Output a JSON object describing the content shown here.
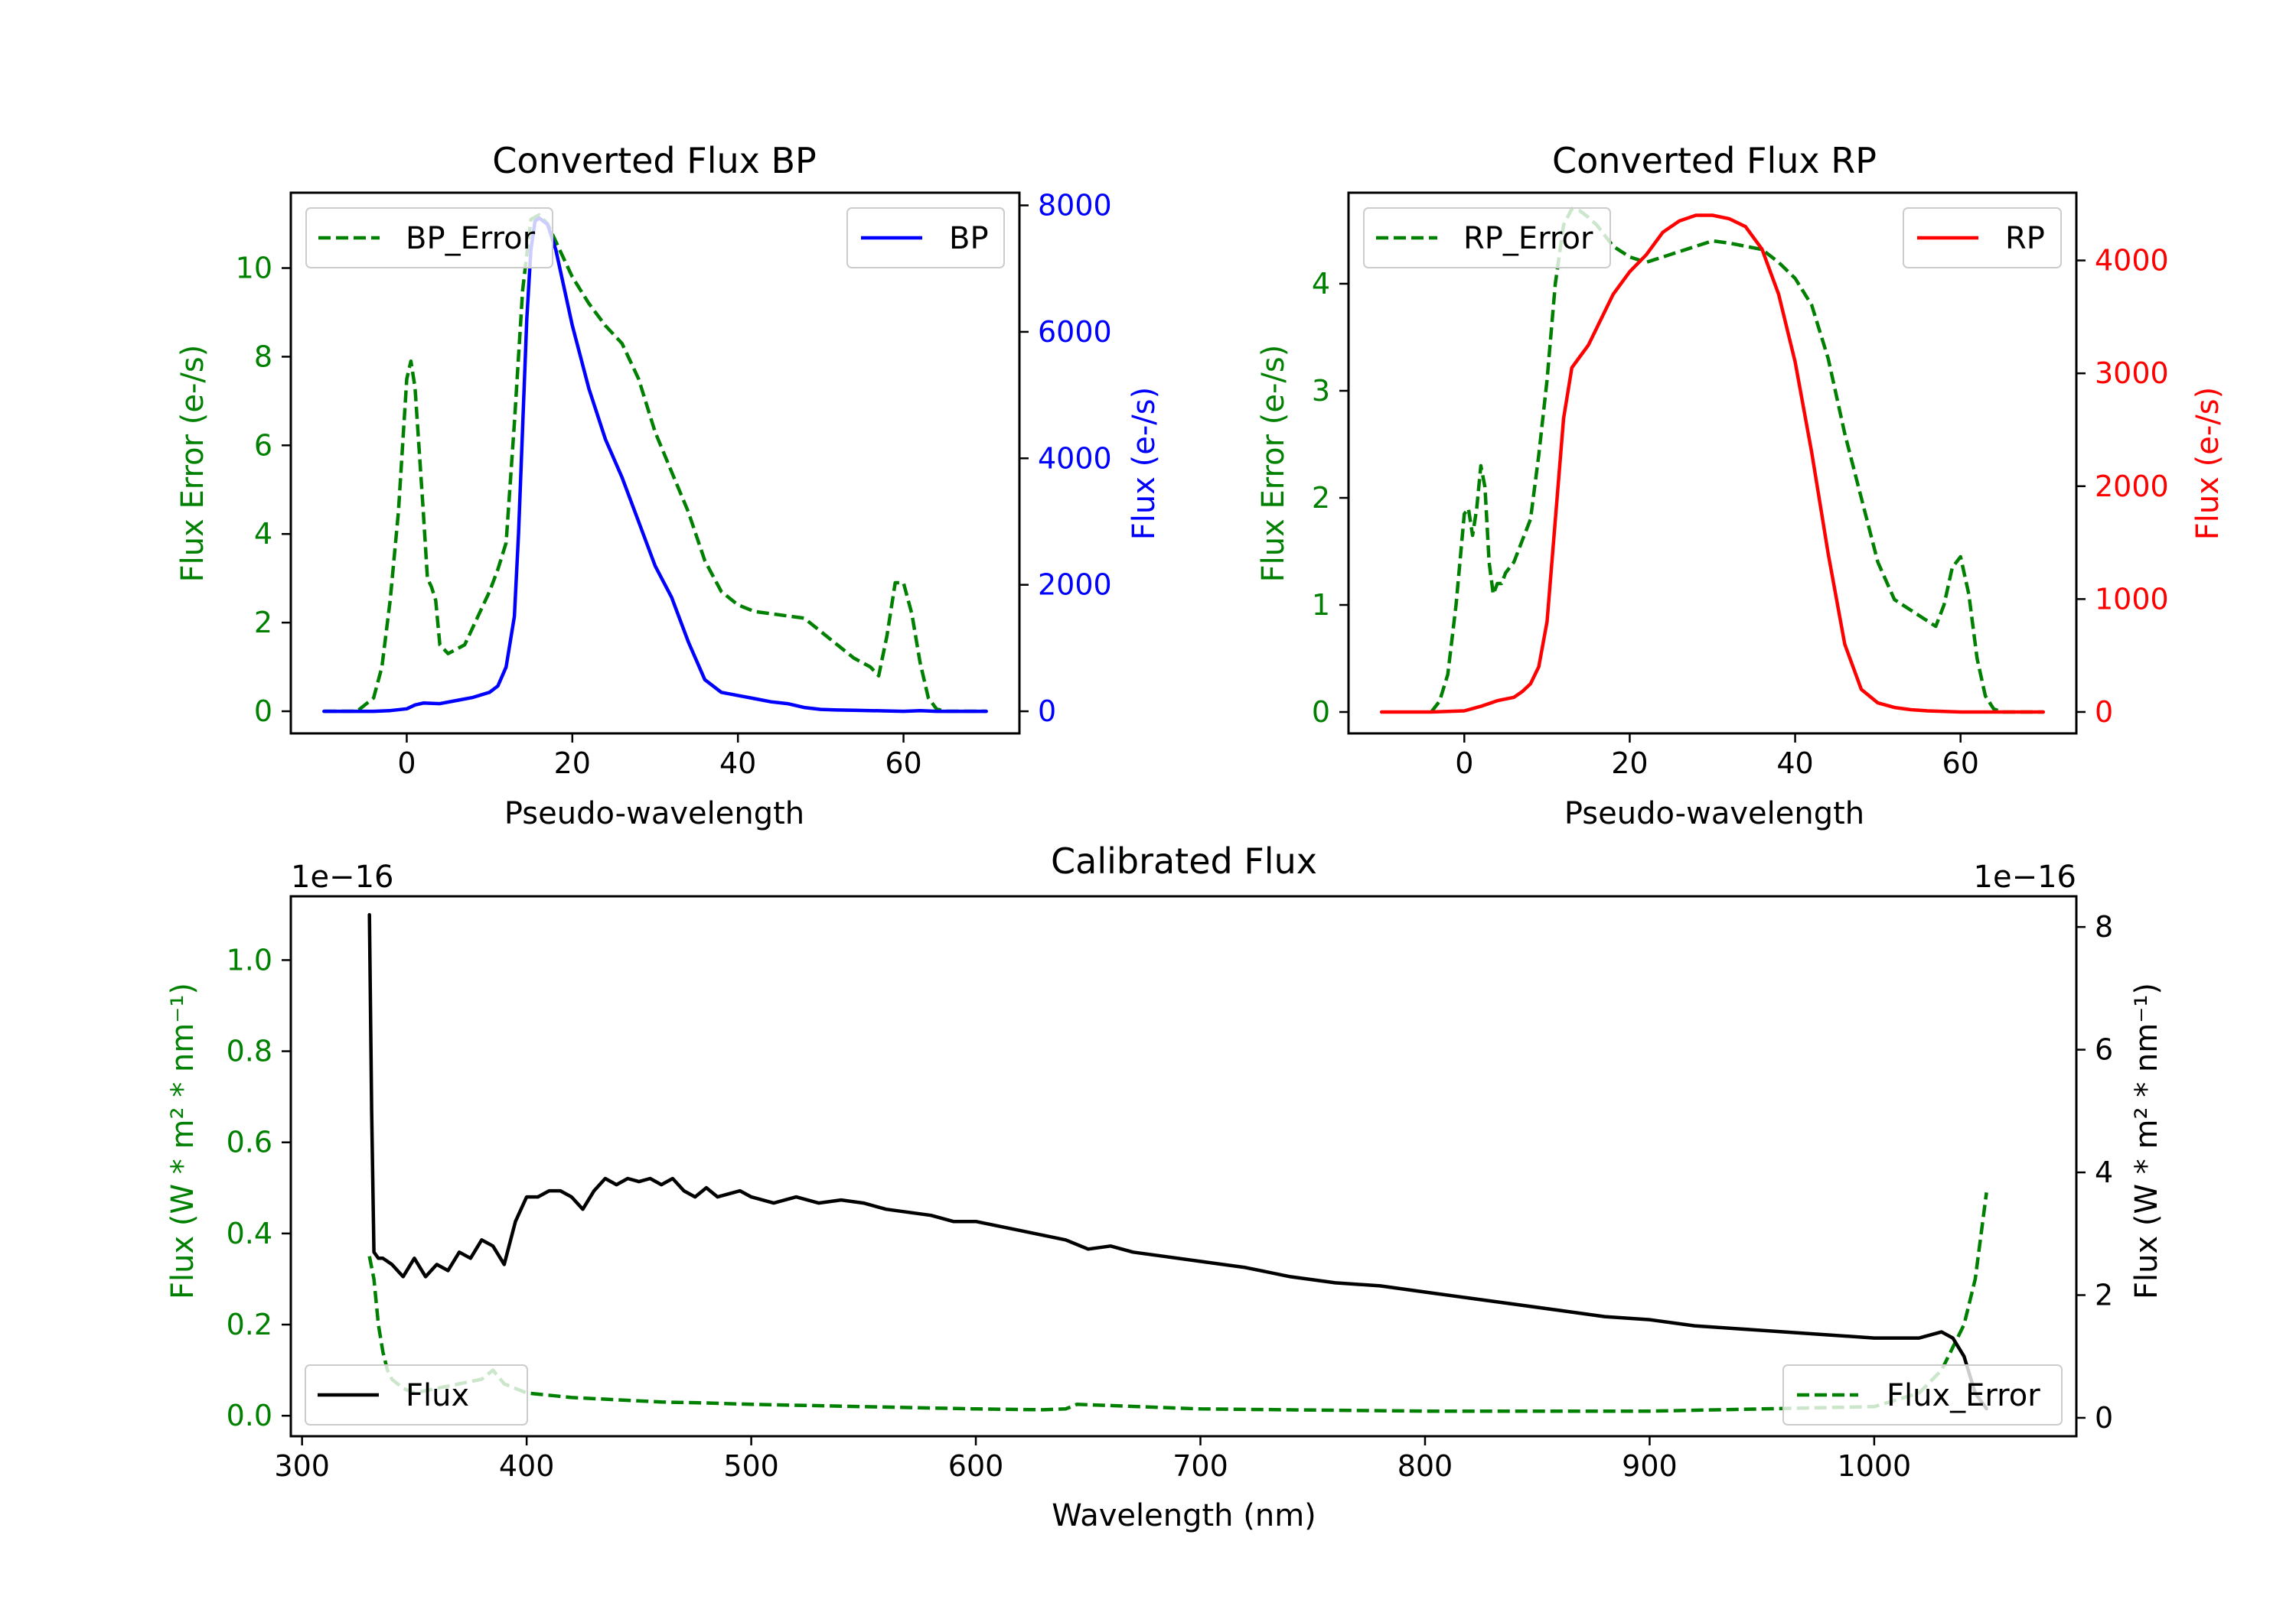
{
  "chart_data": [
    {
      "id": "bp",
      "type": "line",
      "title": "Converted Flux BP",
      "xlabel": "Pseudo-wavelength",
      "xlim": [
        -14,
        74
      ],
      "xticks": [
        0,
        20,
        40,
        60
      ],
      "left_axis": {
        "label": "Flux Error (e-/s)",
        "color": "#008000",
        "ylim": [
          -0.5,
          11.7
        ],
        "ticks": [
          0,
          2,
          4,
          6,
          8,
          10
        ]
      },
      "right_axis": {
        "label": "Flux (e-/s)",
        "color": "#0000ff",
        "ylim": [
          -350,
          8200
        ],
        "ticks": [
          0,
          2000,
          4000,
          6000,
          8000
        ]
      },
      "series": [
        {
          "name": "BP_Error",
          "axis": "left",
          "color": "#008000",
          "dash": true,
          "legend": "upper left",
          "x": [
            -10,
            -6,
            -4,
            -3,
            -2,
            -1,
            0,
            0.5,
            1,
            2,
            2.5,
            3,
            3.5,
            4,
            5,
            6,
            7,
            8,
            9,
            10,
            11,
            12,
            13,
            14,
            15,
            16,
            17,
            18,
            19,
            20,
            22,
            24,
            26,
            28,
            30,
            32,
            34,
            36,
            38,
            40,
            42,
            44,
            46,
            48,
            50,
            52,
            54,
            56,
            57,
            58,
            59,
            60,
            61,
            62,
            63,
            64,
            65,
            66,
            70
          ],
          "values": [
            0,
            0,
            0.3,
            1.0,
            2.5,
            4.5,
            7.5,
            7.9,
            7.3,
            4.5,
            3.0,
            2.8,
            2.5,
            1.5,
            1.3,
            1.4,
            1.5,
            1.9,
            2.3,
            2.7,
            3.2,
            3.8,
            6.5,
            9.5,
            11.1,
            11.2,
            11.0,
            10.6,
            10.2,
            9.8,
            9.2,
            8.7,
            8.3,
            7.5,
            6.3,
            5.4,
            4.5,
            3.4,
            2.7,
            2.4,
            2.25,
            2.2,
            2.15,
            2.1,
            1.8,
            1.5,
            1.2,
            1.0,
            0.8,
            1.7,
            2.9,
            2.9,
            2.2,
            1.1,
            0.3,
            0.05,
            0,
            0,
            0
          ]
        },
        {
          "name": "BP",
          "axis": "right",
          "color": "#0000ff",
          "dash": false,
          "legend": "upper right",
          "x": [
            -10,
            -6,
            -4,
            -2,
            0,
            1,
            2,
            4,
            6,
            8,
            10,
            11,
            12,
            13,
            13.5,
            14,
            14.5,
            15,
            15.5,
            16,
            17,
            18,
            19,
            20,
            22,
            24,
            26,
            28,
            30,
            32,
            34,
            36,
            38,
            40,
            42,
            44,
            46,
            48,
            50,
            52,
            54,
            56,
            58,
            60,
            62,
            64,
            70
          ],
          "values": [
            0,
            0,
            0,
            10,
            40,
            100,
            130,
            120,
            170,
            220,
            300,
            400,
            700,
            1500,
            2800,
            4500,
            6200,
            7300,
            7750,
            7800,
            7700,
            7300,
            6700,
            6100,
            5100,
            4300,
            3700,
            3000,
            2300,
            1800,
            1100,
            500,
            300,
            250,
            200,
            150,
            120,
            60,
            30,
            20,
            15,
            10,
            5,
            0,
            10,
            0,
            0
          ]
        }
      ]
    },
    {
      "id": "rp",
      "type": "line",
      "title": "Converted Flux RP",
      "xlabel": "Pseudo-wavelength",
      "xlim": [
        -14,
        74
      ],
      "xticks": [
        0,
        20,
        40,
        60
      ],
      "left_axis": {
        "label": "Flux Error (e-/s)",
        "color": "#008000",
        "ylim": [
          -0.2,
          4.85
        ],
        "ticks": [
          0,
          1,
          2,
          3,
          4
        ]
      },
      "right_axis": {
        "label": "Flux (e-/s)",
        "color": "#ff0000",
        "ylim": [
          -190,
          4600
        ],
        "ticks": [
          0,
          1000,
          2000,
          3000,
          4000
        ]
      },
      "series": [
        {
          "name": "RP_Error",
          "axis": "left",
          "color": "#008000",
          "dash": true,
          "legend": "upper left",
          "x": [
            -4,
            -3,
            -2,
            -1,
            0,
            0.5,
            1,
            1.5,
            2,
            2.5,
            3,
            3.5,
            4,
            4.5,
            5,
            6,
            7,
            8,
            9,
            10,
            11,
            12,
            13,
            14,
            15,
            16,
            17,
            18,
            20,
            22,
            24,
            26,
            28,
            30,
            32,
            34,
            36,
            38,
            40,
            42,
            44,
            46,
            48,
            50,
            52,
            54,
            55,
            56,
            57,
            58,
            59,
            60,
            61,
            62,
            63,
            64,
            65,
            70
          ],
          "values": [
            0,
            0.1,
            0.35,
            1.0,
            1.85,
            1.9,
            1.65,
            1.9,
            2.3,
            2.1,
            1.4,
            1.1,
            1.2,
            1.2,
            1.3,
            1.4,
            1.6,
            1.8,
            2.4,
            3.1,
            4.0,
            4.55,
            4.7,
            4.68,
            4.62,
            4.55,
            4.45,
            4.35,
            4.25,
            4.2,
            4.25,
            4.3,
            4.35,
            4.4,
            4.38,
            4.35,
            4.32,
            4.2,
            4.05,
            3.8,
            3.3,
            2.6,
            2.0,
            1.4,
            1.05,
            0.95,
            0.9,
            0.85,
            0.8,
            1.0,
            1.35,
            1.45,
            1.1,
            0.5,
            0.15,
            0.03,
            0,
            0
          ]
        },
        {
          "name": "RP",
          "axis": "right",
          "color": "#ff0000",
          "dash": false,
          "legend": "upper right",
          "x": [
            -10,
            -4,
            0,
            2,
            4,
            6,
            7,
            8,
            9,
            10,
            11,
            12,
            13,
            14,
            15,
            16,
            18,
            20,
            22,
            24,
            26,
            28,
            30,
            32,
            34,
            36,
            38,
            40,
            42,
            44,
            46,
            48,
            50,
            52,
            54,
            56,
            58,
            60,
            62,
            70
          ],
          "values": [
            0,
            0,
            10,
            50,
            100,
            130,
            180,
            250,
            400,
            800,
            1700,
            2600,
            3050,
            3150,
            3250,
            3400,
            3700,
            3900,
            4050,
            4250,
            4350,
            4400,
            4400,
            4370,
            4300,
            4100,
            3700,
            3100,
            2300,
            1400,
            600,
            200,
            80,
            40,
            20,
            10,
            5,
            0,
            0,
            0
          ]
        }
      ]
    },
    {
      "id": "cal",
      "type": "line",
      "title": "Calibrated Flux",
      "xlabel": "Wavelength (nm)",
      "xlim": [
        295,
        1090
      ],
      "xticks": [
        300,
        400,
        500,
        600,
        700,
        800,
        900,
        1000
      ],
      "left_axis": {
        "label": "Flux (W * m² * nm⁻¹)",
        "color": "#008000",
        "ylim": [
          -0.045,
          1.14
        ],
        "ticks": [
          0.0,
          0.2,
          0.4,
          0.6,
          0.8,
          1.0
        ],
        "tick_labels": [
          "0.0",
          "0.2",
          "0.4",
          "0.6",
          "0.8",
          "1.0"
        ],
        "multiplier": "1e−16"
      },
      "right_axis": {
        "label": "Flux (W * m² * nm⁻¹)",
        "color": "#000000",
        "ylim": [
          -0.3,
          8.5
        ],
        "ticks": [
          0,
          2,
          4,
          6,
          8
        ],
        "multiplier": "1e−16"
      },
      "series": [
        {
          "name": "Flux_Error",
          "axis": "left",
          "color": "#008000",
          "dash": true,
          "legend": "lower right",
          "x": [
            330,
            332,
            334,
            336,
            338,
            340,
            345,
            350,
            360,
            370,
            380,
            385,
            390,
            400,
            420,
            440,
            460,
            480,
            500,
            550,
            600,
            630,
            640,
            645,
            700,
            800,
            900,
            950,
            1000,
            1020,
            1030,
            1035,
            1040,
            1045,
            1050
          ],
          "values": [
            0.35,
            0.3,
            0.2,
            0.14,
            0.1,
            0.08,
            0.06,
            0.05,
            0.06,
            0.07,
            0.08,
            0.1,
            0.07,
            0.05,
            0.04,
            0.035,
            0.03,
            0.028,
            0.025,
            0.02,
            0.015,
            0.013,
            0.015,
            0.025,
            0.015,
            0.01,
            0.01,
            0.015,
            0.02,
            0.05,
            0.1,
            0.15,
            0.2,
            0.3,
            0.49
          ]
        },
        {
          "name": "Flux",
          "axis": "right",
          "color": "#000000",
          "dash": false,
          "legend": "lower left",
          "x": [
            330,
            331,
            332,
            334,
            336,
            340,
            345,
            350,
            355,
            360,
            365,
            370,
            375,
            380,
            385,
            390,
            395,
            400,
            405,
            410,
            415,
            420,
            425,
            430,
            435,
            440,
            445,
            450,
            455,
            460,
            465,
            470,
            475,
            480,
            485,
            490,
            495,
            500,
            510,
            520,
            530,
            540,
            550,
            560,
            570,
            580,
            590,
            600,
            620,
            640,
            650,
            660,
            670,
            680,
            700,
            720,
            740,
            760,
            780,
            800,
            820,
            840,
            860,
            880,
            900,
            920,
            940,
            960,
            980,
            1000,
            1010,
            1020,
            1025,
            1030,
            1035,
            1040,
            1045,
            1050
          ],
          "values": [
            8.2,
            5.0,
            2.7,
            2.6,
            2.6,
            2.5,
            2.3,
            2.6,
            2.3,
            2.5,
            2.4,
            2.7,
            2.6,
            2.9,
            2.8,
            2.5,
            3.2,
            3.6,
            3.6,
            3.7,
            3.7,
            3.6,
            3.4,
            3.7,
            3.9,
            3.8,
            3.9,
            3.85,
            3.9,
            3.8,
            3.9,
            3.7,
            3.6,
            3.75,
            3.6,
            3.65,
            3.7,
            3.6,
            3.5,
            3.6,
            3.5,
            3.55,
            3.5,
            3.4,
            3.35,
            3.3,
            3.2,
            3.2,
            3.05,
            2.9,
            2.75,
            2.8,
            2.7,
            2.65,
            2.55,
            2.45,
            2.3,
            2.2,
            2.15,
            2.05,
            1.95,
            1.85,
            1.75,
            1.65,
            1.6,
            1.5,
            1.45,
            1.4,
            1.35,
            1.3,
            1.3,
            1.3,
            1.35,
            1.4,
            1.3,
            1.0,
            0.4,
            0.15
          ]
        }
      ]
    }
  ]
}
